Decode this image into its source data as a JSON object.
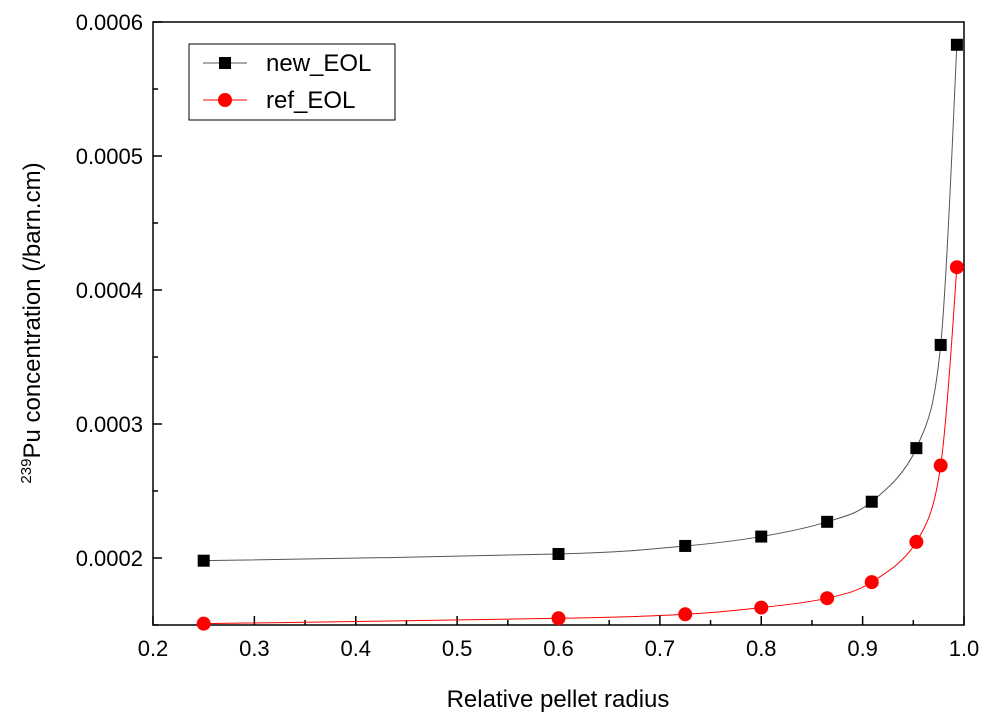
{
  "chart_data": {
    "type": "line",
    "xlabel": "Relative pellet radius",
    "ylabel_prefix": "239",
    "ylabel": "Pu concentration (/barn.cm)",
    "xlim": [
      0.2,
      1.0
    ],
    "ylim": [
      0.00015,
      0.0006
    ],
    "x_ticks": [
      0.2,
      0.3,
      0.4,
      0.5,
      0.6,
      0.7,
      0.8,
      0.9,
      1.0
    ],
    "x_tick_labels": [
      "0.2",
      "0.3",
      "0.4",
      "0.5",
      "0.6",
      "0.7",
      "0.8",
      "0.9",
      "1.0"
    ],
    "y_ticks": [
      0.0002,
      0.0003,
      0.0004,
      0.0005,
      0.0006
    ],
    "y_tick_labels": [
      "0.0002",
      "0.0003",
      "0.0004",
      "0.0005",
      "0.0006"
    ],
    "grid": false,
    "legend_position": "top-left",
    "series": [
      {
        "name": "new_EOL",
        "color": "#000000",
        "line_color": "#555555",
        "marker": "square",
        "x": [
          0.25,
          0.6,
          0.725,
          0.8,
          0.865,
          0.909,
          0.953,
          0.977,
          0.993
        ],
        "y": [
          0.000198,
          0.000203,
          0.000209,
          0.000216,
          0.000227,
          0.000242,
          0.000282,
          0.000359,
          0.000583
        ]
      },
      {
        "name": "ref_EOL",
        "color": "#ff0000",
        "line_color": "#ff0000",
        "marker": "circle",
        "x": [
          0.25,
          0.6,
          0.725,
          0.8,
          0.865,
          0.909,
          0.953,
          0.977,
          0.993
        ],
        "y": [
          0.000151,
          0.000155,
          0.000158,
          0.000163,
          0.00017,
          0.000182,
          0.000212,
          0.000269,
          0.000417
        ]
      }
    ]
  }
}
